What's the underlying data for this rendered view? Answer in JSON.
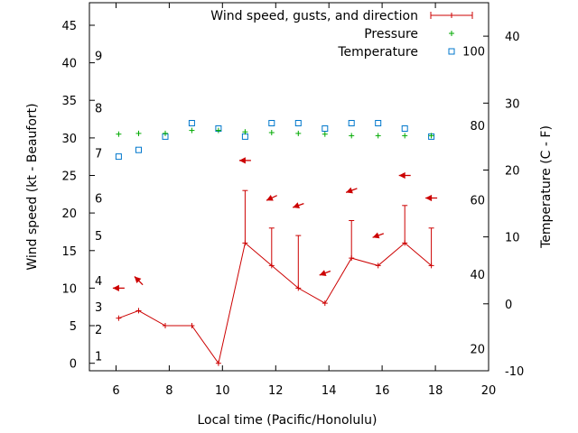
{
  "chart_data": {
    "type": "line",
    "xlabel": "Local time (Pacific/Honolulu)",
    "ylabel": "Wind speed (kt - Beaufort)",
    "y2label": "Temperature (C - F)",
    "xlim": [
      5,
      20
    ],
    "ylim": [
      -1,
      48
    ],
    "y2lim": [
      -10,
      45
    ],
    "x_ticks": [
      6,
      8,
      10,
      12,
      14,
      16,
      18,
      20
    ],
    "y_ticks": [
      0,
      5,
      10,
      15,
      20,
      25,
      30,
      35,
      40,
      45
    ],
    "y2_ticks": [
      -10,
      0,
      10,
      20,
      30,
      40
    ],
    "fahrenheit_labels": [
      {
        "label": "20",
        "celsius": -6.67
      },
      {
        "label": "40",
        "celsius": 4.44
      },
      {
        "label": "60",
        "celsius": 15.56
      },
      {
        "label": "80",
        "celsius": 26.67
      },
      {
        "label": "100",
        "celsius": 37.78
      }
    ],
    "beaufort_labels": [
      {
        "label": "1",
        "kt": 1
      },
      {
        "label": "2",
        "kt": 4.5
      },
      {
        "label": "3",
        "kt": 7.5
      },
      {
        "label": "4",
        "kt": 11
      },
      {
        "label": "5",
        "kt": 17
      },
      {
        "label": "6",
        "kt": 22
      },
      {
        "label": "7",
        "kt": 28
      },
      {
        "label": "8",
        "kt": 34
      },
      {
        "label": "9",
        "kt": 41
      }
    ],
    "legend_position": "top-right",
    "series": [
      {
        "name": "Wind speed, gusts, and direction",
        "color": "#cc0000",
        "x": [
          6.1,
          6.85,
          7.85,
          8.85,
          9.85,
          10.85,
          11.85,
          12.85,
          13.85,
          14.85,
          15.85,
          16.85,
          17.85
        ],
        "values": [
          6,
          7,
          5,
          5,
          0,
          16,
          13,
          10,
          8,
          14,
          13,
          16,
          13
        ],
        "gusts": [
          null,
          null,
          null,
          null,
          null,
          23,
          18,
          17,
          null,
          19,
          null,
          21,
          18
        ],
        "direction_arrows": [
          {
            "x": 6.1,
            "y": 10,
            "to_deg": 270
          },
          {
            "x": 6.85,
            "y": 11,
            "to_deg": 315
          },
          {
            "x": 10.85,
            "y": 27,
            "to_deg": 270
          },
          {
            "x": 11.85,
            "y": 22,
            "to_deg": 245
          },
          {
            "x": 12.85,
            "y": 21,
            "to_deg": 250
          },
          {
            "x": 13.85,
            "y": 12,
            "to_deg": 250
          },
          {
            "x": 14.85,
            "y": 23,
            "to_deg": 250
          },
          {
            "x": 15.85,
            "y": 17,
            "to_deg": 250
          },
          {
            "x": 16.85,
            "y": 25,
            "to_deg": 270
          },
          {
            "x": 17.85,
            "y": 22,
            "to_deg": 270
          }
        ]
      },
      {
        "name": "Pressure",
        "color": "#00aa00",
        "x": [
          6.1,
          6.85,
          7.85,
          8.85,
          9.85,
          10.85,
          11.85,
          12.85,
          13.85,
          14.85,
          15.85,
          16.85,
          17.85
        ],
        "values": [
          30.5,
          30.6,
          30.6,
          31.0,
          31.0,
          30.8,
          30.7,
          30.6,
          30.5,
          30.3,
          30.3,
          30.3,
          30.3
        ]
      },
      {
        "name": "Temperature",
        "color": "#0077cc",
        "axis": "right",
        "x": [
          6.1,
          6.85,
          7.85,
          8.85,
          9.85,
          10.85,
          11.85,
          12.85,
          13.85,
          14.85,
          15.85,
          16.85,
          17.85
        ],
        "values": [
          22,
          23,
          25,
          27,
          26.2,
          25,
          27,
          27,
          26.2,
          27,
          27,
          26.2,
          25
        ]
      }
    ]
  }
}
